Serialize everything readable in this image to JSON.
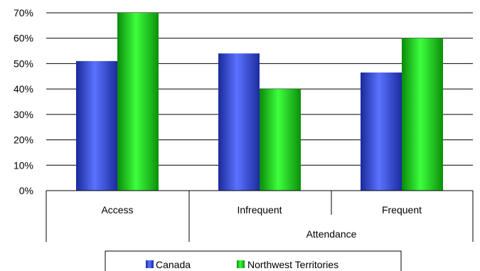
{
  "chart_data": {
    "type": "bar",
    "categories": [
      "Access",
      "Infrequent",
      "Frequent"
    ],
    "group_label": "Attendance",
    "series": [
      {
        "name": "Canada",
        "values": [
          51,
          54,
          46.5
        ],
        "color": "#3a4fd6"
      },
      {
        "name": "Northwest Territories",
        "values": [
          70,
          40,
          60
        ],
        "color": "#19c919"
      }
    ],
    "ylim": [
      0,
      70
    ],
    "yticks": [
      "0%",
      "10%",
      "20%",
      "30%",
      "40%",
      "50%",
      "60%",
      "70%"
    ],
    "grid": true,
    "legend_position": "bottom"
  }
}
